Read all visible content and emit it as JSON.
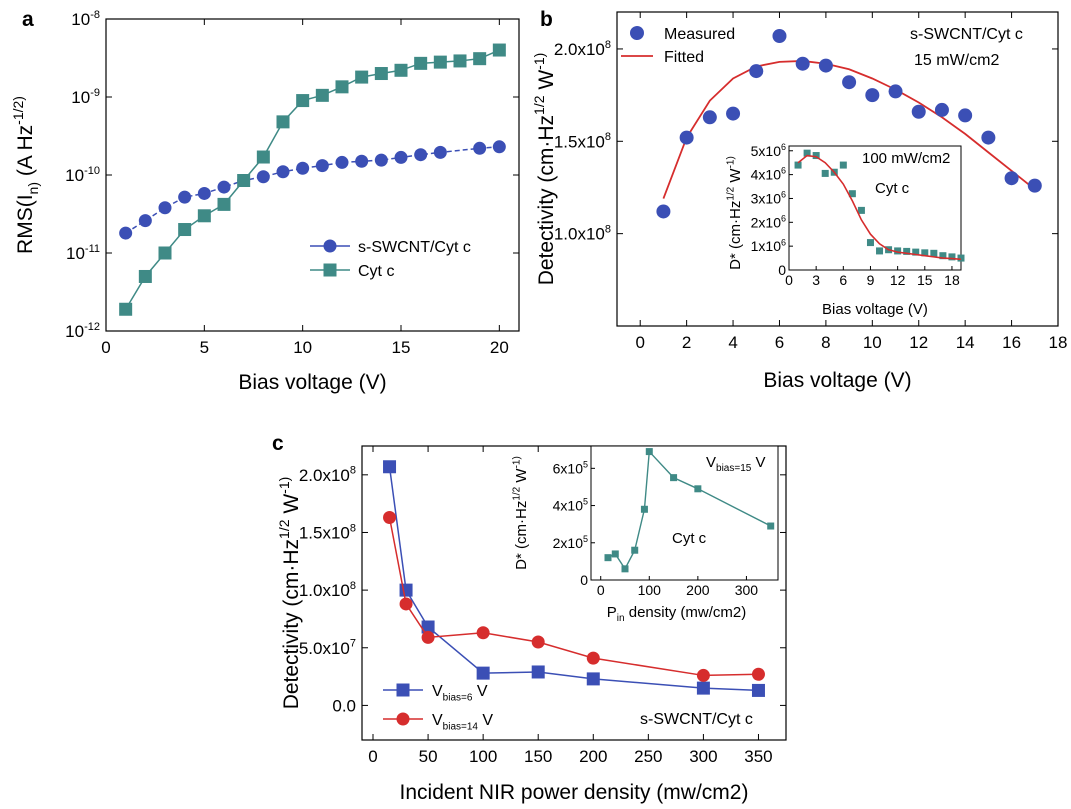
{
  "figure": {
    "panel_a_label": "a",
    "panel_b_label": "b",
    "panel_c_label": "c"
  },
  "colors": {
    "blue": "#3b4fb5",
    "teal": "#3f8a86",
    "red": "#d62d2d"
  },
  "chart_data": [
    {
      "id": "a",
      "type": "line",
      "title": "",
      "xlabel": "Bias voltage (V)",
      "ylabel": "RMS(I_n) (A Hz^-1/2)",
      "xlim": [
        0,
        21
      ],
      "ylim": [
        1e-12,
        1e-08
      ],
      "yscale": "log",
      "xticks": [
        0,
        5,
        10,
        15,
        20
      ],
      "yticks": [
        "10^-12",
        "10^-11",
        "10^-10",
        "10^-9",
        "10^-8"
      ],
      "legend_position": "lower-right",
      "series": [
        {
          "name": "s-SWCNT/Cyt c",
          "marker": "circle",
          "color": "#3b4fb5",
          "x": [
            1,
            2,
            3,
            4,
            5,
            6,
            7,
            8,
            9,
            10,
            11,
            12,
            13,
            14,
            15,
            16,
            17,
            19,
            20
          ],
          "y": [
            1.8e-11,
            2.6e-11,
            3.8e-11,
            5.2e-11,
            5.8e-11,
            7e-11,
            8.5e-11,
            9.5e-11,
            1.1e-10,
            1.22e-10,
            1.32e-10,
            1.45e-10,
            1.5e-10,
            1.55e-10,
            1.68e-10,
            1.82e-10,
            1.95e-10,
            2.2e-10,
            2.3e-10
          ]
        },
        {
          "name": "Cyt c",
          "marker": "square",
          "color": "#3f8a86",
          "x": [
            1,
            2,
            3,
            4,
            5,
            6,
            7,
            8,
            9,
            10,
            11,
            12,
            13,
            14,
            15,
            16,
            17,
            18,
            19,
            20
          ],
          "y": [
            1.9e-12,
            5e-12,
            1e-11,
            2e-11,
            3e-11,
            4.2e-11,
            8.5e-11,
            1.7e-10,
            4.8e-10,
            9e-10,
            1.05e-09,
            1.35e-09,
            1.8e-09,
            2e-09,
            2.2e-09,
            2.7e-09,
            2.8e-09,
            2.9e-09,
            3.1e-09,
            4e-09
          ]
        }
      ]
    },
    {
      "id": "b",
      "type": "scatter",
      "title": "",
      "xlabel": "Bias voltage (V)",
      "ylabel": "Detectivity (cm·Hz^1/2 W^-1)",
      "xlim": [
        -1,
        18
      ],
      "ylim": [
        50000000.0,
        220000000.0
      ],
      "xticks": [
        0,
        2,
        4,
        6,
        8,
        10,
        12,
        14,
        16,
        18
      ],
      "yticks": [
        "1.0x10^8",
        "1.5x10^8",
        "2.0x10^8"
      ],
      "legend_position": "top-left",
      "annotations": [
        "s-SWCNT/Cyt c",
        "15 mW/cm2"
      ],
      "series": [
        {
          "name": "Measured",
          "marker": "circle",
          "color": "#3b4fb5",
          "x": [
            1,
            2,
            3,
            4,
            5,
            6,
            7,
            8,
            9,
            10,
            11,
            12,
            13,
            14,
            15,
            16,
            17
          ],
          "y": [
            112000000.0,
            152000000.0,
            163000000.0,
            165000000.0,
            188000000.0,
            207000000.0,
            192000000.0,
            191000000.0,
            182000000.0,
            175000000.0,
            177000000.0,
            166000000.0,
            167000000.0,
            164000000.0,
            152000000.0,
            130000000.0,
            126000000.0
          ]
        },
        {
          "name": "Fitted",
          "marker": "none",
          "color": "#d62d2d",
          "x": [
            1,
            2,
            3,
            4,
            5,
            6,
            7,
            8,
            9,
            10,
            11,
            12,
            13,
            14,
            15,
            16,
            17
          ],
          "y": [
            119000000.0,
            152000000.0,
            172000000.0,
            184000000.0,
            190500000.0,
            193000000.0,
            193500000.0,
            192000000.0,
            189000000.0,
            184000000.0,
            178000000.0,
            171000000.0,
            163000000.0,
            154000000.0,
            144000000.0,
            134000000.0,
            124000000.0
          ]
        }
      ],
      "inset": {
        "type": "scatter",
        "xlabel": "Bias voltage (V)",
        "ylabel": "D* (cm·Hz^1/2 W^-1)",
        "xlim": [
          0,
          19
        ],
        "ylim": [
          0,
          5200000.0
        ],
        "xticks": [
          0,
          3,
          6,
          9,
          12,
          15,
          18
        ],
        "yticks": [
          "0",
          "1x10^6",
          "2x10^6",
          "3x10^6",
          "4x10^6",
          "5x10^6"
        ],
        "annotations": [
          "100 mW/cm2",
          "Cyt c"
        ],
        "measured": {
          "marker": "square",
          "color": "#3f8a86",
          "x": [
            1,
            2,
            3,
            4,
            5,
            6,
            7,
            8,
            9,
            10,
            11,
            12,
            13,
            14,
            15,
            16,
            17,
            18,
            19
          ],
          "y": [
            4400000.0,
            4900000.0,
            4800000.0,
            4050000.0,
            4100000.0,
            4400000.0,
            3200000.0,
            2500000.0,
            1150000.0,
            800000.0,
            850000.0,
            800000.0,
            780000.0,
            750000.0,
            720000.0,
            700000.0,
            600000.0,
            550000.0,
            500000.0
          ]
        },
        "fit": {
          "color": "#d62d2d",
          "x": [
            1,
            2,
            3,
            4,
            5,
            6,
            7,
            8,
            9,
            10,
            11,
            12,
            13,
            14,
            15,
            16,
            17,
            18,
            19
          ],
          "y": [
            4500000.0,
            4800000.0,
            4750000.0,
            4500000.0,
            4100000.0,
            3600000.0,
            2900000.0,
            2100000.0,
            1500000.0,
            1100000.0,
            850000.0,
            750000.0,
            700000.0,
            650000.0,
            600000.0,
            550000.0,
            500000.0,
            480000.0,
            450000.0
          ]
        }
      }
    },
    {
      "id": "c",
      "type": "line",
      "title": "",
      "xlabel": "Incident NIR power density (mw/cm2)",
      "ylabel": "Detectivity (cm·Hz^1/2 W^-1)",
      "xlim": [
        -10,
        375
      ],
      "ylim": [
        -30000000.0,
        225000000.0
      ],
      "xticks": [
        0,
        50,
        100,
        150,
        200,
        250,
        300,
        350
      ],
      "yticks": [
        "0.0",
        "5.0x10^7",
        "1.0x10^8",
        "1.5x10^8",
        "2.0x10^8"
      ],
      "legend_position": "bottom-left",
      "annotations": [
        "s-SWCNT/Cyt c"
      ],
      "series": [
        {
          "name": "V_bias=6 V",
          "marker": "square",
          "color": "#3b4fb5",
          "x": [
            15,
            30,
            50,
            100,
            150,
            200,
            300,
            350
          ],
          "y": [
            207000000.0,
            100000000.0,
            68000000.0,
            28000000.0,
            29000000.0,
            23000000.0,
            15000000.0,
            13000000.0
          ]
        },
        {
          "name": "V_bias=14 V",
          "marker": "circle",
          "color": "#d62d2d",
          "x": [
            15,
            30,
            50,
            100,
            150,
            200,
            300,
            350
          ],
          "y": [
            163000000.0,
            88000000.0,
            59000000.0,
            63000000.0,
            55000000.0,
            41000000.0,
            26000000.0,
            27000000.0
          ]
        }
      ],
      "inset": {
        "type": "line",
        "xlabel": "P_in density (mw/cm2)",
        "ylabel": "D* (cm·Hz^1/2 W^-1)",
        "xlim": [
          -20,
          365
        ],
        "ylim": [
          0,
          720000.0
        ],
        "xticks": [
          0,
          100,
          200,
          300
        ],
        "yticks": [
          "0",
          "2x10^5",
          "4x10^5",
          "6x10^5"
        ],
        "annotations": [
          "V_bias=15 V",
          "Cyt c"
        ],
        "series": [
          {
            "marker": "square",
            "color": "#3f8a86",
            "x": [
              15,
              30,
              50,
              70,
              90,
              100,
              150,
              200,
              350
            ],
            "y": [
              120000.0,
              140000.0,
              60000.0,
              160000.0,
              380000.0,
              690000.0,
              550000.0,
              490000.0,
              290000.0
            ]
          }
        ]
      }
    }
  ]
}
